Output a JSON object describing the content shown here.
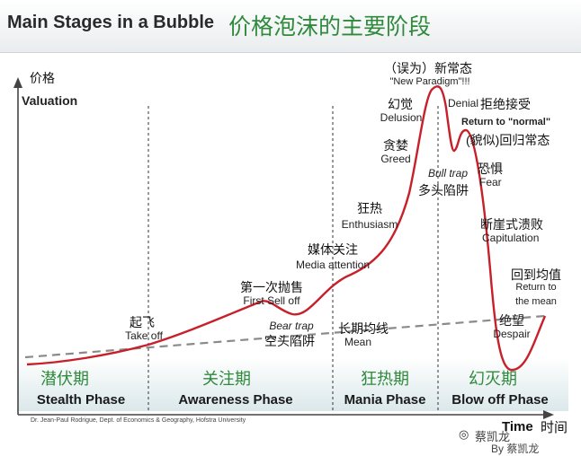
{
  "header": {
    "title_en": "Main Stages in a Bubble",
    "title_zh": "价格泡沫的主要阶段"
  },
  "axes": {
    "y_zh": "价格",
    "y_en": "Valuation",
    "x_en": "Time",
    "x_zh": "时间"
  },
  "annotations": {
    "new_paradigm_zh": "（误为）新常态",
    "new_paradigm_en": "\"New Paradigm\"!!!",
    "delusion_zh": "幻觉",
    "delusion_en": "Delusion",
    "denial_en": "Denial",
    "denial_zh": "拒绝接受",
    "return_normal_en": "Return to \"normal\"",
    "return_normal_zh": "(貌似)回归常态",
    "greed_zh": "贪婪",
    "greed_en": "Greed",
    "bull_trap_en": "Bull trap",
    "bull_trap_zh": "多头陷阱",
    "fear_zh": "恐惧",
    "fear_en": "Fear",
    "enthusiasm_zh": "狂热",
    "enthusiasm_en": "Enthusiasm",
    "capitulation_zh": "断崖式溃败",
    "capitulation_en": "Capitulation",
    "media_zh": "媒体关注",
    "media_en": "Media attention",
    "return_mean_zh": "回到均值",
    "return_mean_en1": "Return to",
    "return_mean_en2": "the mean",
    "first_selloff_zh": "第一次抛售",
    "first_selloff_en": "First Sell off",
    "bear_trap_en": "Bear trap",
    "bear_trap_zh": "空头陷阱",
    "despair_zh": "绝望",
    "despair_en": "Despair",
    "takeoff_zh": "起飞",
    "takeoff_en": "Take off",
    "mean_zh": "长期均线",
    "mean_en": "Mean"
  },
  "phases": [
    {
      "zh": "潜伏期",
      "en": "Stealth Phase"
    },
    {
      "zh": "关注期",
      "en": "Awareness Phase"
    },
    {
      "zh": "狂热期",
      "en": "Mania Phase"
    },
    {
      "zh": "幻灭期",
      "en": "Blow off Phase"
    }
  ],
  "credit": "Dr. Jean-Paul Rodrigue, Dept. of Economics & Geography, Hofstra University",
  "watermark": {
    "line1": "蔡凯龙",
    "line2": "By 蔡凯龙"
  },
  "colors": {
    "curve": "#c8202a",
    "mean_line": "#8a8a8a",
    "phase_band": "#dde9ea",
    "phase_zh": "#2f8a3c"
  }
}
